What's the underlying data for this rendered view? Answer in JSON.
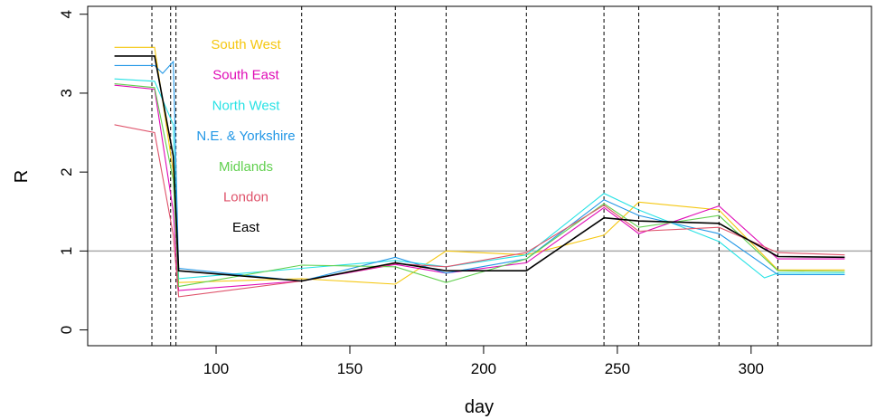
{
  "chart_data": {
    "type": "line",
    "title": "",
    "xlabel": "day",
    "ylabel": "R",
    "xlim": [
      52,
      345
    ],
    "ylim": [
      -0.2,
      4.1
    ],
    "x_ticks": [
      100,
      150,
      200,
      250,
      300
    ],
    "y_ticks": [
      0,
      1,
      2,
      3,
      4
    ],
    "reference_line": {
      "y": 1,
      "color": "#aaaaaa"
    },
    "vertical_lines": [
      76,
      83,
      85,
      132,
      167,
      186,
      216,
      245,
      258,
      288,
      310
    ],
    "legend_position": "top-center",
    "series": [
      {
        "name": "South West",
        "color": "#F5C710",
        "x": [
          62,
          77,
          84,
          86,
          132,
          167,
          186,
          216,
          245,
          258,
          288,
          310,
          335
        ],
        "y": [
          3.58,
          3.58,
          2.0,
          0.6,
          0.65,
          0.58,
          1.0,
          0.95,
          1.2,
          1.62,
          1.52,
          0.76,
          0.76
        ]
      },
      {
        "name": "South East",
        "color": "#DF0BB6",
        "x": [
          62,
          77,
          84,
          86,
          132,
          167,
          186,
          216,
          245,
          258,
          288,
          310,
          335
        ],
        "y": [
          3.1,
          3.05,
          1.5,
          0.5,
          0.62,
          0.83,
          0.72,
          0.85,
          1.55,
          1.22,
          1.57,
          0.9,
          0.9
        ]
      },
      {
        "name": "North West",
        "color": "#28E2E5",
        "x": [
          62,
          77,
          84,
          86,
          132,
          167,
          186,
          216,
          245,
          258,
          288,
          305,
          310,
          335
        ],
        "y": [
          3.18,
          3.15,
          2.6,
          0.65,
          0.78,
          0.88,
          0.8,
          0.95,
          1.73,
          1.52,
          1.12,
          0.66,
          0.72,
          0.72
        ]
      },
      {
        "name": "N.E. & Yorkshire",
        "color": "#2297E6",
        "x": [
          62,
          77,
          80,
          84,
          86,
          132,
          167,
          186,
          216,
          245,
          258,
          288,
          310,
          335
        ],
        "y": [
          3.35,
          3.35,
          3.25,
          3.4,
          0.78,
          0.62,
          0.92,
          0.72,
          0.9,
          1.65,
          1.45,
          1.22,
          0.7,
          0.7
        ]
      },
      {
        "name": "Midlands",
        "color": "#61D04F",
        "x": [
          62,
          77,
          84,
          86,
          132,
          167,
          186,
          216,
          245,
          258,
          288,
          310,
          335
        ],
        "y": [
          3.12,
          3.07,
          1.9,
          0.55,
          0.82,
          0.8,
          0.6,
          0.9,
          1.6,
          1.3,
          1.45,
          0.75,
          0.74
        ]
      },
      {
        "name": "London",
        "color": "#DF536B",
        "x": [
          62,
          77,
          84,
          86,
          132,
          167,
          186,
          216,
          245,
          258,
          288,
          310,
          335
        ],
        "y": [
          2.6,
          2.5,
          1.2,
          0.42,
          0.62,
          0.84,
          0.8,
          0.98,
          1.58,
          1.25,
          1.3,
          0.98,
          0.95
        ]
      },
      {
        "name": "East",
        "color": "#000000",
        "x": [
          62,
          77,
          84,
          86,
          132,
          167,
          186,
          216,
          245,
          258,
          288,
          310,
          335
        ],
        "y": [
          3.47,
          3.47,
          2.2,
          0.75,
          0.62,
          0.85,
          0.75,
          0.75,
          1.42,
          1.38,
          1.35,
          0.93,
          0.92
        ]
      }
    ]
  }
}
